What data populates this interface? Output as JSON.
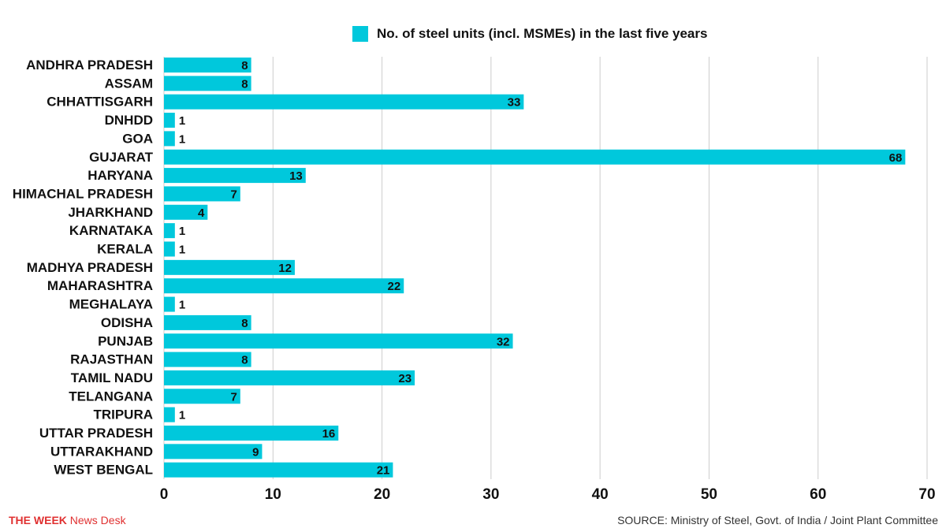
{
  "chart_data": {
    "type": "bar",
    "orientation": "horizontal",
    "legend": "No. of steel units (incl. MSMEs) in the last five years",
    "legend_position": "top-center",
    "categories": [
      "ANDHRA PRADESH",
      "ASSAM",
      "CHHATTISGARH",
      "DNHDD",
      "GOA",
      "GUJARAT",
      "HARYANA",
      "HIMACHAL PRADESH",
      "JHARKHAND",
      "KARNATAKA",
      "KERALA",
      "MADHYA PRADESH",
      "MAHARASHTRA",
      "MEGHALAYA",
      "ODISHA",
      "PUNJAB",
      "RAJASTHAN",
      "TAMIL NADU",
      "TELANGANA",
      "TRIPURA",
      "UTTAR PRADESH",
      "UTTARAKHAND",
      "WEST BENGAL"
    ],
    "values": [
      8,
      8,
      33,
      1,
      1,
      68,
      13,
      7,
      4,
      1,
      1,
      12,
      22,
      1,
      8,
      32,
      8,
      23,
      7,
      1,
      16,
      9,
      21
    ],
    "xlim": [
      0,
      70
    ],
    "xticks": [
      0,
      10,
      20,
      30,
      40,
      50,
      60,
      70
    ],
    "grid": true,
    "bar_color": "#00c8dc"
  },
  "footer": {
    "brand": "THE WEEK",
    "desk": " News Desk",
    "source": "SOURCE: Ministry of Steel, Govt. of India / Joint Plant Committee"
  }
}
